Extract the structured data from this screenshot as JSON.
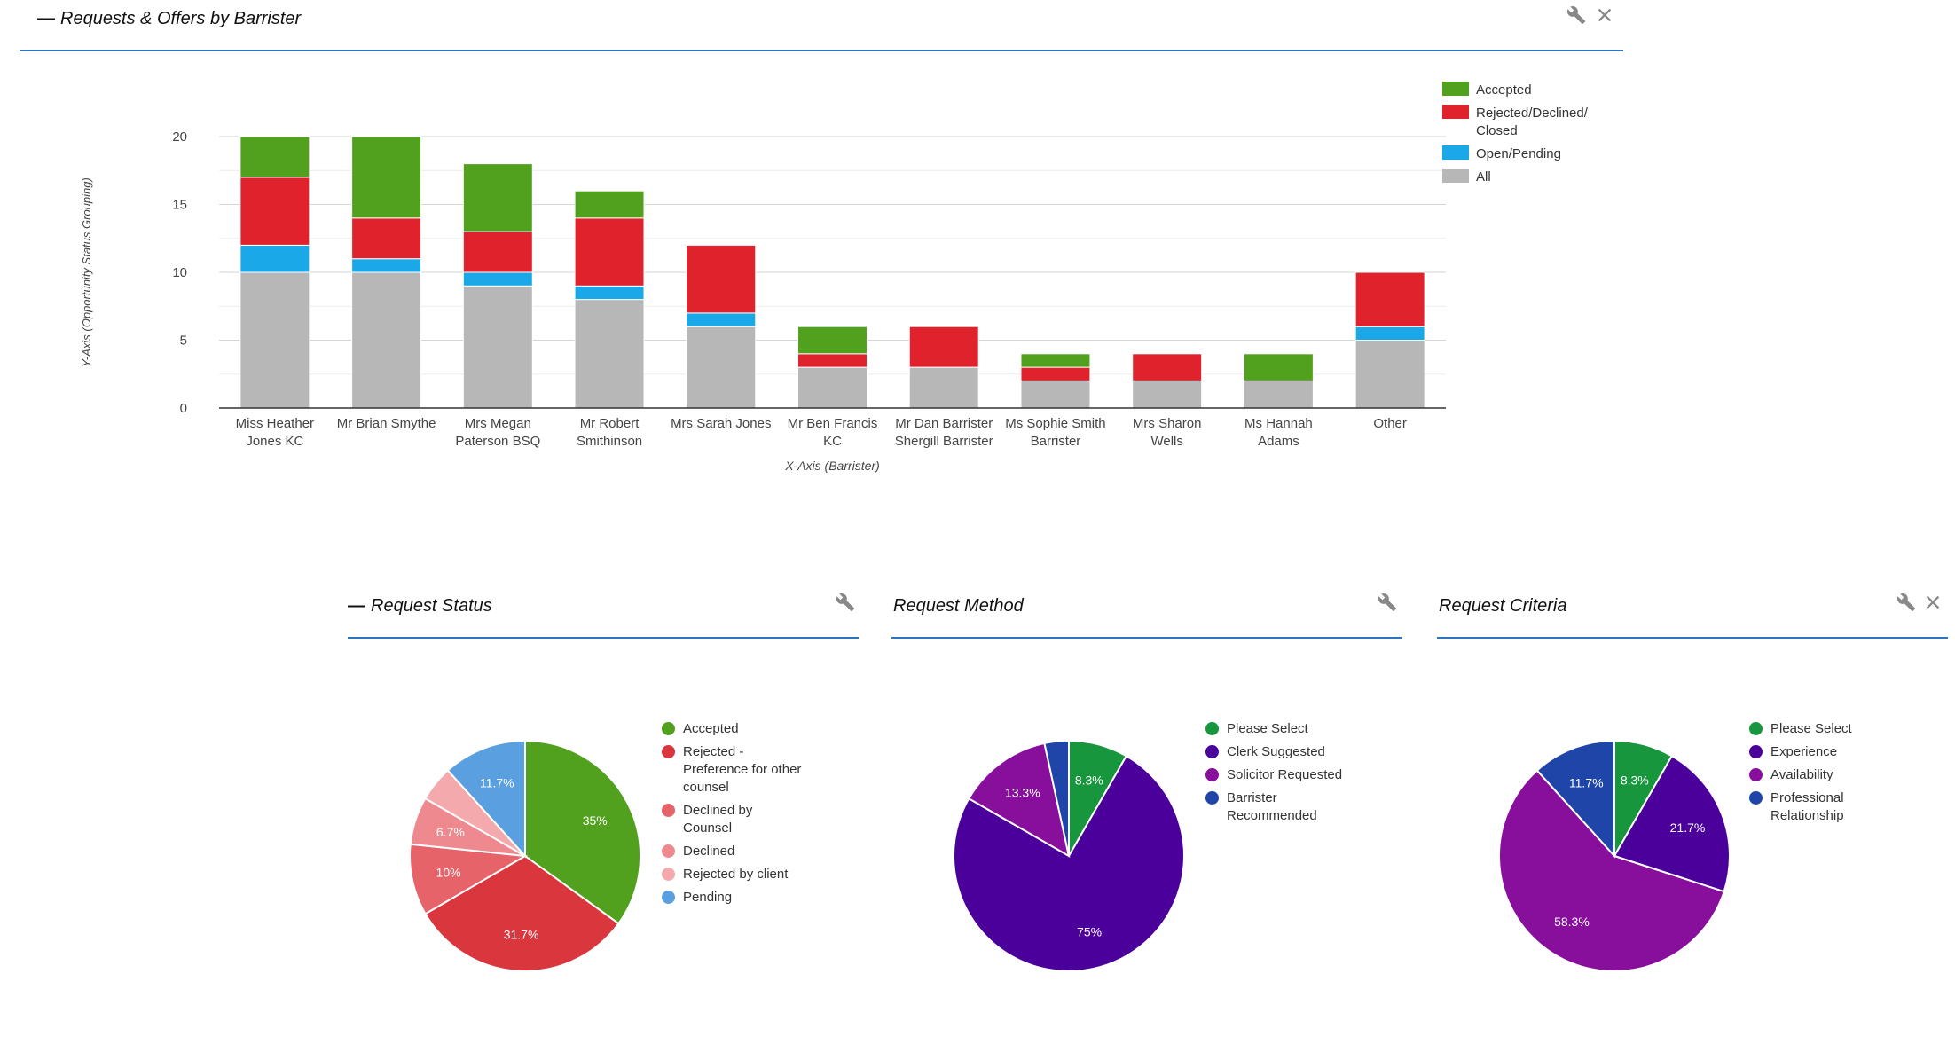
{
  "main_panel": {
    "title": "Requests & Offers by Barrister"
  },
  "panels": {
    "status": {
      "title": "Request Status"
    },
    "method": {
      "title": "Request Method"
    },
    "criteria": {
      "title": "Request Criteria"
    }
  },
  "chart_data": [
    {
      "type": "bar",
      "stacked": true,
      "xlabel": "X-Axis (Barrister)",
      "ylabel": "Y-Axis (Opportunity Status Grouping)",
      "ylim": [
        0,
        20
      ],
      "yticks": [
        0,
        5,
        10,
        15,
        20
      ],
      "grid": true,
      "legend_position": "right",
      "categories": [
        [
          "Miss Heather",
          "Jones KC"
        ],
        [
          "Mr Brian Smythe"
        ],
        [
          "Mrs Megan",
          "Paterson BSQ"
        ],
        [
          "Mr Robert",
          "Smithinson"
        ],
        [
          "Mrs Sarah Jones"
        ],
        [
          "Mr Ben Francis",
          "KC"
        ],
        [
          "Mr Dan Barrister",
          "Shergill Barrister"
        ],
        [
          "Ms Sophie Smith",
          "Barrister"
        ],
        [
          "Mrs Sharon",
          "Wells"
        ],
        [
          "Ms Hannah",
          "Adams"
        ],
        [
          "Other"
        ]
      ],
      "series": [
        {
          "name": "All",
          "color": "#b7b7b7",
          "values": [
            10,
            10,
            9,
            8,
            6,
            3,
            3,
            2,
            2,
            2,
            5
          ]
        },
        {
          "name": "Open/Pending",
          "color": "#1ba8e8",
          "values": [
            2,
            1,
            1,
            1,
            1,
            0,
            0,
            0,
            0,
            0,
            1
          ]
        },
        {
          "name": "Rejected/Declined/ Closed",
          "color": "#e0222d",
          "values": [
            5,
            3,
            3,
            5,
            5,
            1,
            3,
            1,
            2,
            0,
            4
          ]
        },
        {
          "name": "Accepted",
          "color": "#51a11f",
          "values": [
            3,
            6,
            5,
            2,
            0,
            2,
            0,
            1,
            0,
            2,
            0
          ]
        }
      ],
      "legend_order": [
        "Accepted",
        "Rejected/Declined/ Closed",
        "Open/Pending",
        "All"
      ]
    },
    {
      "type": "pie",
      "title": "Request Status",
      "slices": [
        {
          "label": "Accepted",
          "value": 35,
          "display": "35%",
          "color": "#51a11f"
        },
        {
          "label": "Rejected - Preference for other counsel",
          "value": 31.7,
          "display": "31.7%",
          "color": "#d9363e"
        },
        {
          "label": "Declined by Counsel",
          "value": 10,
          "display": "10%",
          "color": "#e56369"
        },
        {
          "label": "Declined",
          "value": 6.7,
          "display": "6.7%",
          "color": "#ee8a8f"
        },
        {
          "label": "Rejected by client",
          "value": 5,
          "display": "",
          "color": "#f4aaad"
        },
        {
          "label": "Pending",
          "value": 11.7,
          "display": "11.7%",
          "color": "#5a9fdf"
        }
      ]
    },
    {
      "type": "pie",
      "title": "Request Method",
      "slices": [
        {
          "label": "Please Select",
          "value": 8.3,
          "display": "8.3%",
          "color": "#17963e"
        },
        {
          "label": "Clerk Suggested",
          "value": 75,
          "display": "75%",
          "color": "#4b009c"
        },
        {
          "label": "Solicitor Requested",
          "value": 13.3,
          "display": "13.3%",
          "color": "#880e9c"
        },
        {
          "label": "Barrister Recommended",
          "value": 3.4,
          "display": "",
          "color": "#1f45a8"
        }
      ]
    },
    {
      "type": "pie",
      "title": "Request Criteria",
      "slices": [
        {
          "label": "Please Select",
          "value": 8.3,
          "display": "8.3%",
          "color": "#17963e"
        },
        {
          "label": "Experience",
          "value": 21.7,
          "display": "21.7%",
          "color": "#4b009c"
        },
        {
          "label": "Availability",
          "value": 58.3,
          "display": "58.3%",
          "color": "#880e9c"
        },
        {
          "label": "Professional Relationship",
          "value": 11.7,
          "display": "11.7%",
          "color": "#1f45a8"
        }
      ]
    }
  ]
}
